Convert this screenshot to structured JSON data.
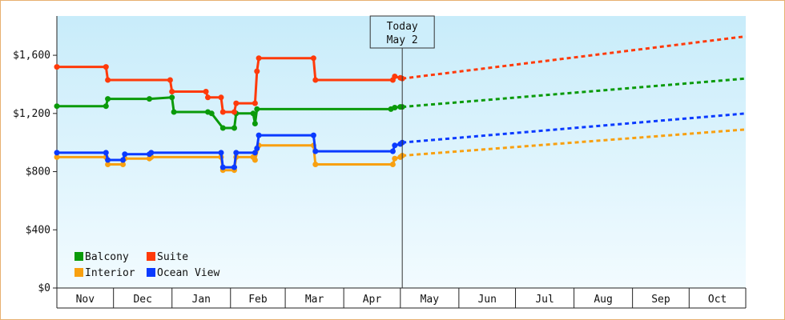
{
  "chart_data": {
    "type": "line",
    "title": "",
    "xlabel": "",
    "ylabel": "",
    "ylim": [
      0,
      1870
    ],
    "y_ticks": [
      0,
      400,
      800,
      1200,
      1600
    ],
    "y_tick_labels": [
      "$0",
      "$400",
      "$800",
      "$1,200",
      "$1,600"
    ],
    "x_range": [
      "2023-11-01",
      "2024-10-31"
    ],
    "months": [
      "Nov",
      "Dec",
      "Jan",
      "Feb",
      "Mar",
      "Apr",
      "May",
      "Jun",
      "Jul",
      "Aug",
      "Sep",
      "Oct"
    ],
    "month_starts": [
      "2023-11-01",
      "2023-12-01",
      "2024-01-01",
      "2024-02-01",
      "2024-03-01",
      "2024-04-01",
      "2024-05-01",
      "2024-06-01",
      "2024-07-01",
      "2024-08-01",
      "2024-09-01",
      "2024-10-01",
      "2024-10-31"
    ],
    "today": {
      "line1": "Today",
      "line2": "May 2",
      "date": "2024-05-02"
    },
    "legend_position": "bottom-left",
    "grid": false,
    "series": [
      {
        "name": "Balcony",
        "color": "#0a9a0a",
        "history": [
          [
            "2023-10-01",
            1250
          ],
          [
            "2023-11-27",
            1250
          ],
          [
            "2023-11-28",
            1300
          ],
          [
            "2023-12-20",
            1300
          ],
          [
            "2024-01-01",
            1310
          ],
          [
            "2024-01-02",
            1210
          ],
          [
            "2024-01-20",
            1210
          ],
          [
            "2024-01-22",
            1200
          ],
          [
            "2024-01-28",
            1100
          ],
          [
            "2024-02-03",
            1100
          ],
          [
            "2024-02-04",
            1200
          ],
          [
            "2024-02-13",
            1200
          ],
          [
            "2024-02-14",
            1130
          ],
          [
            "2024-02-15",
            1230
          ],
          [
            "2024-04-26",
            1230
          ],
          [
            "2024-04-28",
            1240
          ],
          [
            "2024-05-01",
            1245
          ],
          [
            "2024-05-02",
            1245
          ]
        ],
        "forecast": [
          [
            "2024-05-02",
            1245
          ],
          [
            "2024-10-31",
            1440
          ]
        ]
      },
      {
        "name": "Suite",
        "color": "#ff3a0a",
        "history": [
          [
            "2023-10-01",
            1520
          ],
          [
            "2023-11-27",
            1520
          ],
          [
            "2023-11-28",
            1430
          ],
          [
            "2023-12-31",
            1430
          ],
          [
            "2024-01-01",
            1350
          ],
          [
            "2024-01-19",
            1350
          ],
          [
            "2024-01-20",
            1310
          ],
          [
            "2024-01-27",
            1310
          ],
          [
            "2024-01-28",
            1210
          ],
          [
            "2024-02-03",
            1210
          ],
          [
            "2024-02-04",
            1270
          ],
          [
            "2024-02-14",
            1270
          ],
          [
            "2024-02-15",
            1490
          ],
          [
            "2024-02-16",
            1580
          ],
          [
            "2024-03-16",
            1580
          ],
          [
            "2024-03-17",
            1430
          ],
          [
            "2024-04-27",
            1430
          ],
          [
            "2024-04-28",
            1455
          ],
          [
            "2024-05-01",
            1445
          ],
          [
            "2024-05-02",
            1440
          ]
        ],
        "forecast": [
          [
            "2024-05-02",
            1440
          ],
          [
            "2024-10-31",
            1730
          ]
        ]
      },
      {
        "name": "Interior",
        "color": "#f8a010",
        "history": [
          [
            "2023-10-01",
            900
          ],
          [
            "2023-11-27",
            900
          ],
          [
            "2023-11-28",
            850
          ],
          [
            "2023-12-06",
            850
          ],
          [
            "2023-12-07",
            890
          ],
          [
            "2023-12-20",
            890
          ],
          [
            "2023-12-21",
            900
          ],
          [
            "2024-01-27",
            900
          ],
          [
            "2024-01-28",
            810
          ],
          [
            "2024-02-03",
            810
          ],
          [
            "2024-02-04",
            900
          ],
          [
            "2024-02-13",
            900
          ],
          [
            "2024-02-14",
            880
          ],
          [
            "2024-02-16",
            980
          ],
          [
            "2024-03-16",
            980
          ],
          [
            "2024-03-17",
            850
          ],
          [
            "2024-04-27",
            850
          ],
          [
            "2024-04-28",
            890
          ],
          [
            "2024-05-01",
            900
          ],
          [
            "2024-05-02",
            910
          ]
        ],
        "forecast": [
          [
            "2024-05-02",
            910
          ],
          [
            "2024-10-31",
            1090
          ]
        ]
      },
      {
        "name": "Ocean View",
        "color": "#0a3aff",
        "history": [
          [
            "2023-10-01",
            930
          ],
          [
            "2023-11-27",
            930
          ],
          [
            "2023-11-28",
            880
          ],
          [
            "2023-12-06",
            880
          ],
          [
            "2023-12-07",
            920
          ],
          [
            "2023-12-20",
            920
          ],
          [
            "2023-12-21",
            930
          ],
          [
            "2024-01-27",
            930
          ],
          [
            "2024-01-28",
            830
          ],
          [
            "2024-02-03",
            830
          ],
          [
            "2024-02-04",
            930
          ],
          [
            "2024-02-14",
            930
          ],
          [
            "2024-02-15",
            960
          ],
          [
            "2024-02-16",
            1050
          ],
          [
            "2024-03-16",
            1050
          ],
          [
            "2024-03-17",
            940
          ],
          [
            "2024-04-27",
            940
          ],
          [
            "2024-04-28",
            980
          ],
          [
            "2024-05-01",
            990
          ],
          [
            "2024-05-02",
            1000
          ]
        ],
        "forecast": [
          [
            "2024-05-02",
            1000
          ],
          [
            "2024-10-31",
            1200
          ]
        ]
      }
    ]
  }
}
